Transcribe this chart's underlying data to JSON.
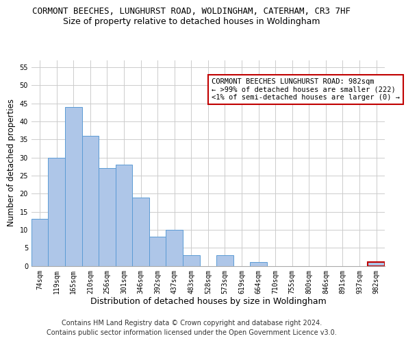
{
  "title": "CORMONT BEECHES, LUNGHURST ROAD, WOLDINGHAM, CATERHAM, CR3 7HF",
  "subtitle": "Size of property relative to detached houses in Woldingham",
  "xlabel": "Distribution of detached houses by size in Woldingham",
  "ylabel": "Number of detached properties",
  "categories": [
    "74sqm",
    "119sqm",
    "165sqm",
    "210sqm",
    "256sqm",
    "301sqm",
    "346sqm",
    "392sqm",
    "437sqm",
    "483sqm",
    "528sqm",
    "573sqm",
    "619sqm",
    "664sqm",
    "710sqm",
    "755sqm",
    "800sqm",
    "846sqm",
    "891sqm",
    "937sqm",
    "982sqm"
  ],
  "values": [
    13,
    30,
    44,
    36,
    27,
    28,
    19,
    8,
    10,
    3,
    0,
    3,
    0,
    1,
    0,
    0,
    0,
    0,
    0,
    0,
    1
  ],
  "bar_color": "#aec6e8",
  "bar_edgecolor": "#5b9bd5",
  "highlight_bar_index": 20,
  "highlight_bar_edgecolor": "#c00000",
  "annotation_text": "CORMONT BEECHES LUNGHURST ROAD: 982sqm\n← >99% of detached houses are smaller (222)\n<1% of semi-detached houses are larger (0) →",
  "annotation_box_edgecolor": "#c00000",
  "annotation_box_facecolor": "#ffffff",
  "annotation_fontsize": 7.5,
  "ylim": [
    0,
    57
  ],
  "yticks": [
    0,
    5,
    10,
    15,
    20,
    25,
    30,
    35,
    40,
    45,
    50,
    55
  ],
  "grid_color": "#cccccc",
  "background_color": "#ffffff",
  "footer_line1": "Contains HM Land Registry data © Crown copyright and database right 2024.",
  "footer_line2": "Contains public sector information licensed under the Open Government Licence v3.0.",
  "title_fontsize": 9,
  "subtitle_fontsize": 9,
  "xlabel_fontsize": 9,
  "ylabel_fontsize": 8.5,
  "tick_fontsize": 7,
  "footer_fontsize": 7
}
